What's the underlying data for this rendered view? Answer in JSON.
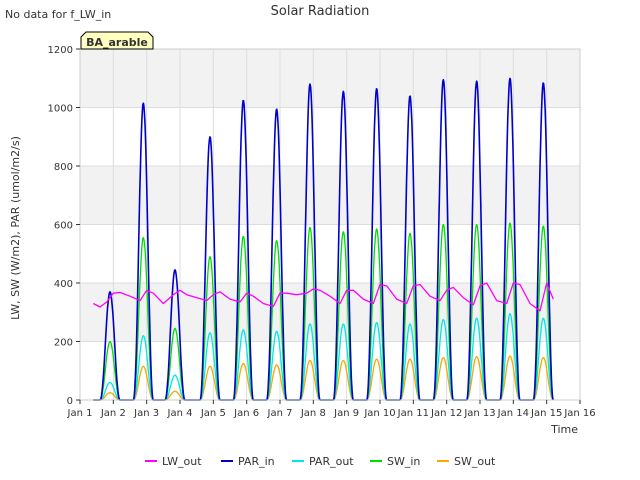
{
  "no_data_note": "No data for f_LW_in",
  "site_badge": "BA_arable",
  "colors": {
    "LW_out": "#ff00ff",
    "PAR_in": "#0000cc",
    "PAR_out": "#00e5ee",
    "SW_in": "#00dd00",
    "SW_out": "#ffa500",
    "band": "#f2f2f2",
    "badge_fill": "#ffffc0",
    "badge_text": "#990000"
  },
  "chart_data": {
    "type": "line",
    "title": "Solar Radiation",
    "xlabel": "Time",
    "ylabel": "LW, SW (W/m2), PAR (umol/m2/s)",
    "xlim": [
      1,
      16
    ],
    "ylim": [
      0,
      1200
    ],
    "x_ticks": [
      1,
      2,
      3,
      4,
      5,
      6,
      7,
      8,
      9,
      10,
      11,
      12,
      13,
      14,
      15,
      16
    ],
    "x_tick_labels": [
      "Jan 1",
      "Jan 2",
      "Jan 3",
      "Jan 4",
      "Jan 5",
      "Jan 6",
      "Jan 7",
      "Jan 8",
      "Jan 9",
      "Jan 10",
      "Jan 11",
      "Jan 12",
      "Jan 13",
      "Jan 14",
      "Jan 15",
      "Jan 16"
    ],
    "y_ticks": [
      0,
      200,
      400,
      600,
      800,
      1000,
      1200
    ],
    "grid": true,
    "legend_position": "bottom",
    "x_range_of_data": [
      1.4,
      15.2
    ],
    "series": [
      {
        "name": "LW_out",
        "key": "LW_out",
        "x": [
          1.4,
          1.6,
          1.8,
          2.0,
          2.2,
          2.5,
          2.8,
          3.0,
          3.2,
          3.5,
          3.8,
          4.0,
          4.2,
          4.5,
          4.8,
          5.0,
          5.2,
          5.5,
          5.8,
          6.0,
          6.2,
          6.5,
          6.8,
          7.0,
          7.2,
          7.5,
          7.8,
          8.0,
          8.2,
          8.5,
          8.8,
          9.0,
          9.2,
          9.5,
          9.8,
          10.0,
          10.2,
          10.5,
          10.8,
          11.0,
          11.2,
          11.5,
          11.8,
          12.0,
          12.2,
          12.5,
          12.8,
          13.0,
          13.2,
          13.5,
          13.8,
          14.0,
          14.2,
          14.5,
          14.8,
          15.0,
          15.2
        ],
        "y": [
          330,
          318,
          335,
          365,
          368,
          355,
          340,
          375,
          365,
          330,
          360,
          375,
          360,
          350,
          340,
          360,
          370,
          345,
          335,
          365,
          355,
          330,
          320,
          365,
          365,
          360,
          365,
          380,
          375,
          355,
          330,
          375,
          375,
          345,
          330,
          395,
          390,
          345,
          330,
          390,
          395,
          355,
          340,
          375,
          385,
          350,
          325,
          390,
          400,
          340,
          330,
          400,
          395,
          330,
          305,
          400,
          345
        ]
      },
      {
        "name": "PAR_in",
        "key": "PAR_in",
        "days": [
          1.9,
          2.9,
          3.85,
          4.9,
          5.9,
          6.9,
          7.9,
          8.9,
          9.9,
          10.9,
          11.9,
          12.9,
          13.9,
          14.9
        ],
        "peaks": [
          370,
          1015,
          445,
          900,
          1025,
          995,
          1080,
          1055,
          1065,
          1040,
          1095,
          1090,
          1100,
          1085
        ]
      },
      {
        "name": "PAR_out",
        "key": "PAR_out",
        "days": [
          1.9,
          2.9,
          3.85,
          4.9,
          5.9,
          6.9,
          7.9,
          8.9,
          9.9,
          10.9,
          11.9,
          12.9,
          13.9,
          14.9
        ],
        "peaks": [
          60,
          220,
          85,
          230,
          240,
          235,
          260,
          260,
          265,
          260,
          275,
          280,
          295,
          280
        ]
      },
      {
        "name": "SW_in",
        "key": "SW_in",
        "days": [
          1.9,
          2.9,
          3.85,
          4.9,
          5.9,
          6.9,
          7.9,
          8.9,
          9.9,
          10.9,
          11.9,
          12.9,
          13.9,
          14.9
        ],
        "peaks": [
          200,
          555,
          245,
          490,
          560,
          545,
          590,
          575,
          585,
          570,
          600,
          600,
          605,
          595
        ]
      },
      {
        "name": "SW_out",
        "key": "SW_out",
        "days": [
          1.9,
          2.9,
          3.85,
          4.9,
          5.9,
          6.9,
          7.9,
          8.9,
          9.9,
          10.9,
          11.9,
          12.9,
          13.9,
          14.9
        ],
        "peaks": [
          25,
          115,
          30,
          115,
          125,
          120,
          135,
          135,
          140,
          140,
          145,
          148,
          150,
          145
        ]
      }
    ]
  }
}
